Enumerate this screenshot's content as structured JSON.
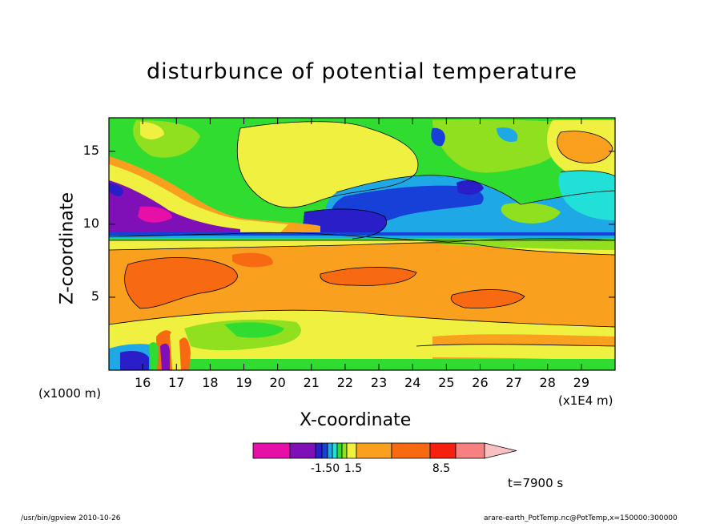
{
  "chart_data": {
    "type": "heatmap",
    "title": "disturbunce of potential temperature",
    "xlabel": "X-coordinate",
    "ylabel": "Z-coordinate",
    "x_unit_label": "(x1000 m)",
    "x_exponent_label": "(x1E4 m)",
    "x_ticks": [
      "16",
      "17",
      "18",
      "19",
      "20",
      "21",
      "22",
      "23",
      "24",
      "25",
      "26",
      "27",
      "28",
      "29"
    ],
    "x_tick_values": [
      16,
      17,
      18,
      19,
      20,
      21,
      22,
      23,
      24,
      25,
      26,
      27,
      28,
      29
    ],
    "xlim": [
      15,
      30
    ],
    "y_ticks": [
      "5",
      "10",
      "15"
    ],
    "y_tick_values": [
      5,
      10,
      15
    ],
    "ylim": [
      0,
      17.3
    ],
    "colorbar": {
      "colors": [
        "#e60fa8",
        "#7f10b8",
        "#2a1ec8",
        "#1740d8",
        "#1fa8e6",
        "#20e0d8",
        "#30dc30",
        "#90e020",
        "#f0f040",
        "#f9a01e",
        "#f76a12",
        "#f52010",
        "#f78080",
        "#f8c0c0"
      ],
      "tick_labels": [
        "-1.50",
        "1.5",
        "8.5"
      ],
      "tick_after_color": [
        5,
        7,
        11
      ]
    },
    "time_label": "t=7900 s"
  },
  "footer": {
    "left": "/usr/bin/gpview   2010-10-26",
    "right": "arare-earth_PotTemp.nc@PotTemp,x=150000:300000"
  }
}
